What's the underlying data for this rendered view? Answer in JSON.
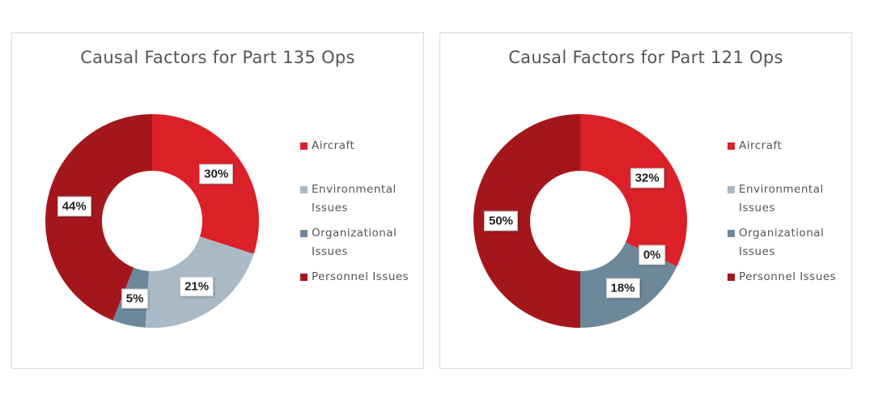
{
  "chart_data": [
    {
      "type": "pie",
      "title": "Causal Factors for Part 135 Ops",
      "categories": [
        "Aircraft",
        "Environmental Issues",
        "Organizational Issues",
        "Personnel Issues"
      ],
      "values": [
        30,
        21,
        5,
        44
      ],
      "labels": [
        "30%",
        "21%",
        "5%",
        "44%"
      ],
      "legend": "right"
    },
    {
      "type": "pie",
      "title": "Causal Factors for Part 121 Ops",
      "categories": [
        "Aircraft",
        "Environmental Issues",
        "Organizational Issues",
        "Personnel Issues"
      ],
      "values": [
        32,
        0,
        18,
        50
      ],
      "labels": [
        "32%",
        "0%",
        "18%",
        "50%"
      ],
      "legend": "right"
    }
  ],
  "colors": [
    "#dc2027",
    "#a9bac6",
    "#6e889b",
    "#a3171c"
  ]
}
